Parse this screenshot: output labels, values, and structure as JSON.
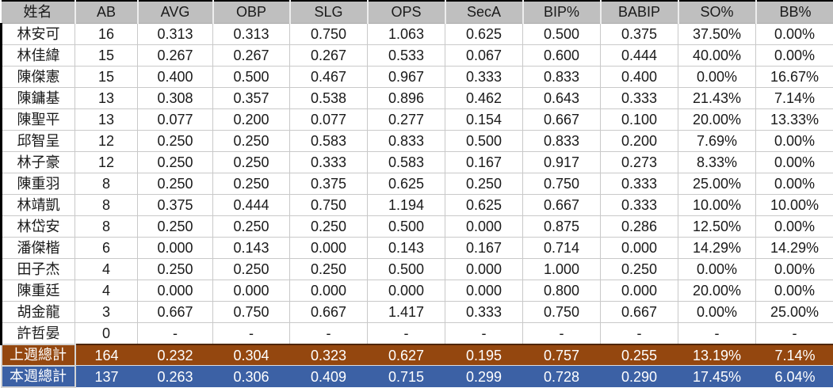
{
  "table": {
    "columns": [
      "姓名",
      "AB",
      "AVG",
      "OBP",
      "SLG",
      "OPS",
      "SecA",
      "BIP%",
      "BABIP",
      "SO%",
      "BB%"
    ],
    "rows": [
      [
        "林安可",
        "16",
        "0.313",
        "0.313",
        "0.750",
        "1.063",
        "0.625",
        "0.500",
        "0.375",
        "37.50%",
        "0.00%"
      ],
      [
        "林佳緯",
        "15",
        "0.267",
        "0.267",
        "0.267",
        "0.533",
        "0.067",
        "0.600",
        "0.444",
        "40.00%",
        "0.00%"
      ],
      [
        "陳傑憲",
        "15",
        "0.400",
        "0.500",
        "0.467",
        "0.967",
        "0.333",
        "0.833",
        "0.400",
        "0.00%",
        "16.67%"
      ],
      [
        "陳鏞基",
        "13",
        "0.308",
        "0.357",
        "0.538",
        "0.896",
        "0.462",
        "0.643",
        "0.333",
        "21.43%",
        "7.14%"
      ],
      [
        "陳聖平",
        "13",
        "0.077",
        "0.200",
        "0.077",
        "0.277",
        "0.154",
        "0.667",
        "0.100",
        "20.00%",
        "13.33%"
      ],
      [
        "邱智呈",
        "12",
        "0.250",
        "0.250",
        "0.583",
        "0.833",
        "0.500",
        "0.833",
        "0.200",
        "7.69%",
        "0.00%"
      ],
      [
        "林子豪",
        "12",
        "0.250",
        "0.250",
        "0.333",
        "0.583",
        "0.167",
        "0.917",
        "0.273",
        "8.33%",
        "0.00%"
      ],
      [
        "陳重羽",
        "8",
        "0.250",
        "0.250",
        "0.375",
        "0.625",
        "0.250",
        "0.750",
        "0.333",
        "25.00%",
        "0.00%"
      ],
      [
        "林靖凱",
        "8",
        "0.375",
        "0.444",
        "0.750",
        "1.194",
        "0.625",
        "0.667",
        "0.333",
        "10.00%",
        "10.00%"
      ],
      [
        "林岱安",
        "8",
        "0.250",
        "0.250",
        "0.250",
        "0.500",
        "0.000",
        "0.875",
        "0.286",
        "12.50%",
        "0.00%"
      ],
      [
        "潘傑楷",
        "6",
        "0.000",
        "0.143",
        "0.000",
        "0.143",
        "0.167",
        "0.714",
        "0.000",
        "14.29%",
        "14.29%"
      ],
      [
        "田子杰",
        "4",
        "0.250",
        "0.250",
        "0.250",
        "0.500",
        "0.000",
        "1.000",
        "0.250",
        "0.00%",
        "0.00%"
      ],
      [
        "陳重廷",
        "4",
        "0.000",
        "0.000",
        "0.000",
        "0.000",
        "0.000",
        "0.800",
        "0.000",
        "20.00%",
        "0.00%"
      ],
      [
        "胡金龍",
        "3",
        "0.667",
        "0.750",
        "0.667",
        "1.417",
        "0.333",
        "0.750",
        "0.667",
        "0.00%",
        "25.00%"
      ],
      [
        "許哲晏",
        "0",
        "-",
        "-",
        "-",
        "-",
        "-",
        "-",
        "-",
        "-",
        "-"
      ]
    ],
    "summary": [
      {
        "label": "上週總計",
        "values": [
          "164",
          "0.232",
          "0.304",
          "0.323",
          "0.627",
          "0.195",
          "0.757",
          "0.255",
          "13.19%",
          "7.14%"
        ]
      },
      {
        "label": "本週總計",
        "values": [
          "137",
          "0.263",
          "0.306",
          "0.409",
          "0.715",
          "0.299",
          "0.728",
          "0.290",
          "17.45%",
          "6.04%"
        ]
      }
    ]
  },
  "colors": {
    "header_bg": "#BFBFBF",
    "grid": "#C9C9C9",
    "outline": "#000000",
    "last_week_bg": "#94470F",
    "this_week_bg": "#3C61A5",
    "summary_text": "#FFFFFF"
  }
}
